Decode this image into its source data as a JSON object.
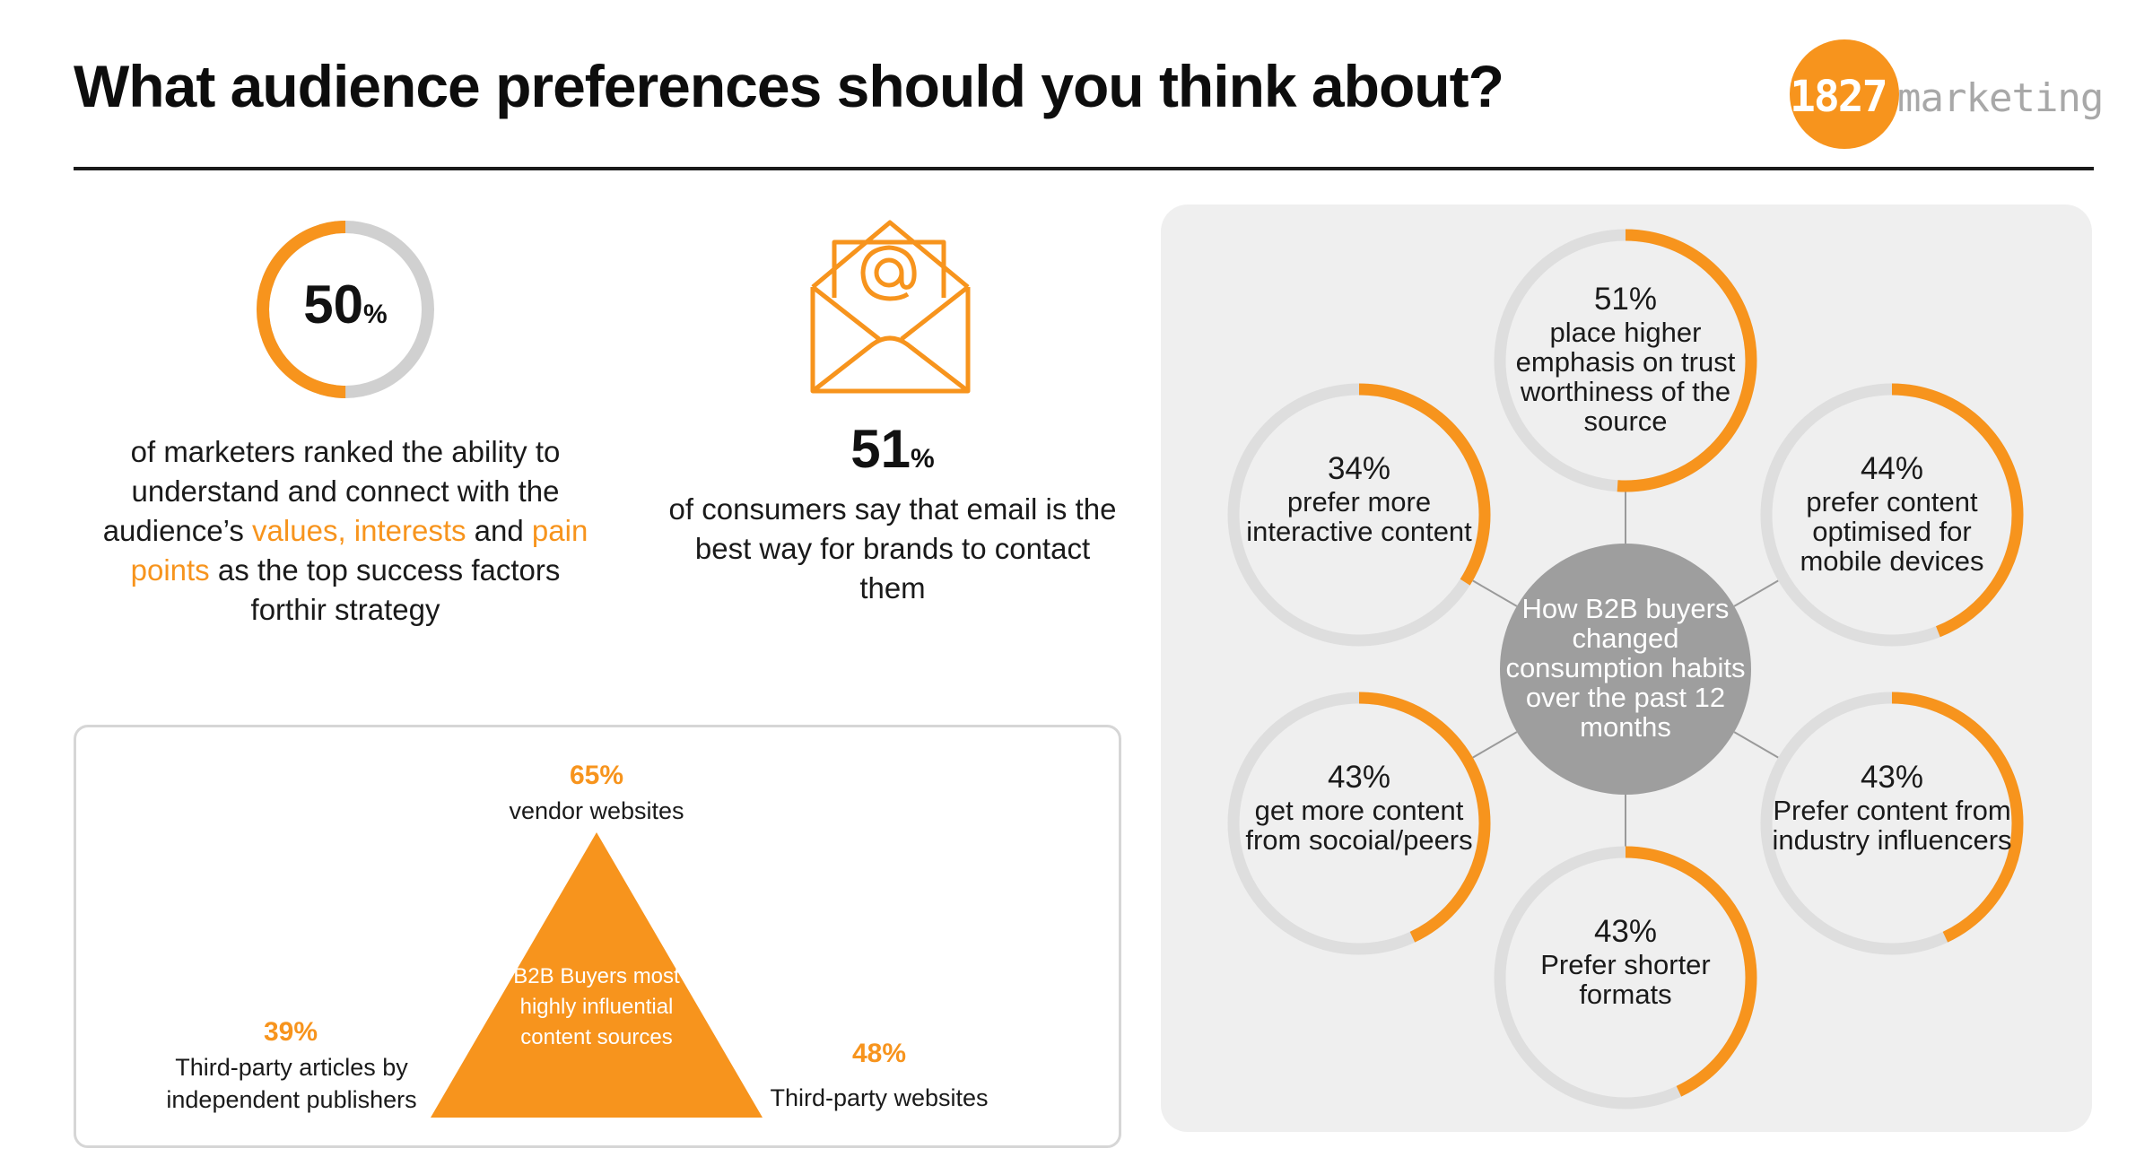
{
  "header": {
    "title": "What audience preferences should you think about?",
    "logo_number": "1827",
    "logo_word": "marketing"
  },
  "colors": {
    "accent": "#f7941d",
    "ring_track": "#dedede",
    "hub": "#9e9e9e",
    "panel": "#efefef"
  },
  "stat_marketers": {
    "value": "50",
    "unit": "%",
    "fill_fraction": 0.5,
    "text_parts": [
      "of marketers ranked the ability to understand and connect with the audience’s ",
      "values, interests",
      " and ",
      "pain points",
      " as the top success factors forthir strategy"
    ]
  },
  "stat_email": {
    "icon": "email-envelope-icon",
    "value": "51",
    "unit": "%",
    "text": "of consumers say that email is the best way for brands to contact them"
  },
  "pyramid": {
    "center_label": "B2B Buyers most highly influential content sources",
    "top": {
      "value": "65%",
      "label": "vendor websites"
    },
    "left": {
      "value": "39%",
      "label": "Third-party articles by independent publishers"
    },
    "right": {
      "value": "48%",
      "label": "Third-party websites"
    }
  },
  "consumption": {
    "hub_label": "How B2B buyers changed consumption habits over the past 12 months",
    "rings": [
      {
        "value": "51%",
        "label": "place higher emphasis on trust worthiness of the source",
        "fraction": 0.51
      },
      {
        "value": "44%",
        "label": "prefer content optimised for mobile devices",
        "fraction": 0.44
      },
      {
        "value": "43%",
        "label": "Prefer content from industry influencers",
        "fraction": 0.43
      },
      {
        "value": "43%",
        "label": "Prefer shorter formats",
        "fraction": 0.43
      },
      {
        "value": "43%",
        "label": "get  more content from socoial/peers",
        "fraction": 0.43
      },
      {
        "value": "34%",
        "label": "prefer more interactive content",
        "fraction": 0.34
      }
    ]
  }
}
